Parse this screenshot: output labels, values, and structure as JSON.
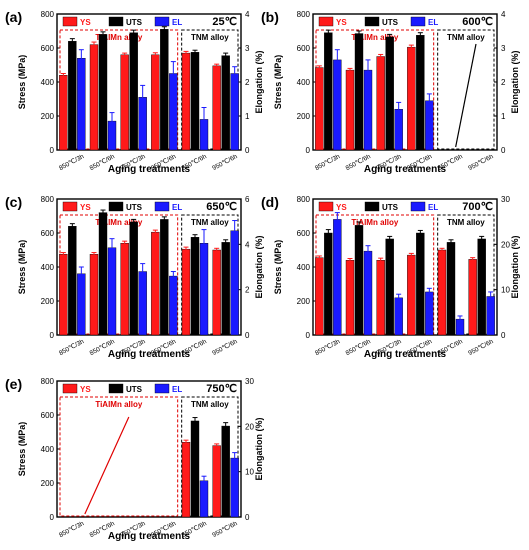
{
  "colors": {
    "YS": "#ff1a1a",
    "UTS": "#000000",
    "EL": "#1a1aff",
    "tiaMnBox": "#e00000",
    "tnmBox": "#000000"
  },
  "chart_data": [
    {
      "type": "bar",
      "panel": "(a)",
      "temperature": "25℃",
      "ylabel": "Stress (MPa)",
      "y2label": "Elongation (%)",
      "xlabel": "Aging treatments",
      "ylim": [
        0,
        800
      ],
      "yticks": [
        0,
        200,
        400,
        600,
        800
      ],
      "y2lim": [
        0,
        4
      ],
      "y2ticks": [
        0,
        1,
        2,
        3,
        4
      ],
      "legend": [
        "YS",
        "UTS",
        "EL"
      ],
      "group_labels": [
        "TiAlMn alloy",
        "TNM alloy"
      ],
      "categories": [
        "850℃/3h",
        "850℃/6h",
        "950℃/3h",
        "950℃/6h",
        "850℃/6h",
        "950℃/6h"
      ],
      "group_split": 4,
      "series": [
        {
          "name": "YS",
          "axis": "left",
          "values": [
            440,
            620,
            560,
            560,
            570,
            495
          ],
          "err": [
            10,
            15,
            10,
            12,
            10,
            10
          ]
        },
        {
          "name": "UTS",
          "axis": "left",
          "values": [
            640,
            680,
            690,
            710,
            575,
            555
          ],
          "err": [
            15,
            15,
            15,
            15,
            12,
            15
          ]
        },
        {
          "name": "EL",
          "axis": "right",
          "values": [
            2.7,
            0.85,
            1.55,
            2.25,
            0.9,
            2.25
          ],
          "err": [
            0.25,
            0.25,
            0.35,
            0.35,
            0.35,
            0.2
          ]
        }
      ]
    },
    {
      "type": "bar",
      "panel": "(b)",
      "temperature": "600℃",
      "ylabel": "Stress (MPa)",
      "y2label": "Elongation (%)",
      "xlabel": "Aging treatments",
      "ylim": [
        0,
        800
      ],
      "yticks": [
        0,
        200,
        400,
        600,
        800
      ],
      "y2lim": [
        0,
        4
      ],
      "y2ticks": [
        0,
        1,
        2,
        3,
        4
      ],
      "legend": [
        "YS",
        "UTS",
        "EL"
      ],
      "group_labels": [
        "TiAlMn alloy",
        "TNM alloy"
      ],
      "categories": [
        "850℃/3h",
        "850℃/6h",
        "950℃/3h",
        "950℃/6h",
        "850℃/6h",
        "950℃/6h"
      ],
      "group_split": 4,
      "strike_group": 1,
      "series": [
        {
          "name": "YS",
          "axis": "left",
          "values": [
            485,
            470,
            550,
            605,
            null,
            null
          ],
          "err": [
            10,
            10,
            12,
            12,
            null,
            null
          ]
        },
        {
          "name": "UTS",
          "axis": "left",
          "values": [
            690,
            685,
            665,
            675,
            null,
            null
          ],
          "err": [
            15,
            15,
            15,
            15,
            null,
            null
          ]
        },
        {
          "name": "EL",
          "axis": "right",
          "values": [
            2.65,
            2.35,
            1.2,
            1.45,
            null,
            null
          ],
          "err": [
            0.3,
            0.3,
            0.2,
            0.2,
            null,
            null
          ]
        }
      ]
    },
    {
      "type": "bar",
      "panel": "(c)",
      "temperature": "650℃",
      "ylabel": "Stress (MPa)",
      "y2label": "Elongation (%)",
      "xlabel": "Aging treatments",
      "ylim": [
        0,
        800
      ],
      "yticks": [
        0,
        200,
        400,
        600,
        800
      ],
      "y2lim": [
        0,
        6
      ],
      "y2ticks": [
        0,
        2,
        4,
        6
      ],
      "legend": [
        "YS",
        "UTS",
        "EL"
      ],
      "group_labels": [
        "TiAlMn alloy",
        "TNM alloy"
      ],
      "categories": [
        "850℃/3h",
        "850℃/6h",
        "950℃/3h",
        "950℃/6h",
        "850℃/6h",
        "950℃/6h"
      ],
      "group_split": 4,
      "series": [
        {
          "name": "YS",
          "axis": "left",
          "values": [
            475,
            475,
            540,
            605,
            505,
            500
          ],
          "err": [
            10,
            10,
            12,
            12,
            12,
            10
          ]
        },
        {
          "name": "UTS",
          "axis": "left",
          "values": [
            640,
            720,
            665,
            680,
            575,
            545
          ],
          "err": [
            15,
            15,
            15,
            15,
            15,
            15
          ]
        },
        {
          "name": "EL",
          "axis": "right",
          "values": [
            2.7,
            3.85,
            2.8,
            2.6,
            4.05,
            4.6
          ],
          "err": [
            0.3,
            0.4,
            0.35,
            0.2,
            0.6,
            0.45
          ]
        }
      ]
    },
    {
      "type": "bar",
      "panel": "(d)",
      "temperature": "700℃",
      "ylabel": "Stress (MPa)",
      "y2label": "Elongation (%)",
      "xlabel": "Aging treatments",
      "ylim": [
        0,
        800
      ],
      "yticks": [
        0,
        200,
        400,
        600,
        800
      ],
      "y2lim": [
        0,
        30
      ],
      "y2ticks": [
        0,
        10,
        20,
        30
      ],
      "legend": [
        "YS",
        "UTS",
        "EL"
      ],
      "group_labels": [
        "TiAlMn alloy",
        "TNM alloy"
      ],
      "categories": [
        "850℃/3h",
        "850℃/6h",
        "950℃/3h",
        "950℃/6h",
        "850℃/6h",
        "950℃/6h"
      ],
      "group_split": 4,
      "series": [
        {
          "name": "YS",
          "axis": "left",
          "values": [
            455,
            440,
            440,
            470,
            500,
            445
          ],
          "err": [
            10,
            10,
            12,
            10,
            10,
            10
          ]
        },
        {
          "name": "UTS",
          "axis": "left",
          "values": [
            600,
            645,
            565,
            600,
            545,
            565
          ],
          "err": [
            20,
            20,
            15,
            15,
            15,
            15
          ]
        },
        {
          "name": "EL",
          "axis": "right",
          "values": [
            25.5,
            18.5,
            8.2,
            9.5,
            3.5,
            8.5
          ],
          "err": [
            1.5,
            1.2,
            0.8,
            0.8,
            0.7,
            1.0
          ]
        }
      ]
    },
    {
      "type": "bar",
      "panel": "(e)",
      "temperature": "750℃",
      "ylabel": "Stress (MPa)",
      "y2label": "Elongation (%)",
      "xlabel": "Aging treatments",
      "ylim": [
        0,
        800
      ],
      "yticks": [
        0,
        200,
        400,
        600,
        800
      ],
      "y2lim": [
        0,
        30
      ],
      "y2ticks": [
        0,
        10,
        20,
        30
      ],
      "legend": [
        "YS",
        "UTS",
        "EL"
      ],
      "group_labels": [
        "TiAlMn alloy",
        "TNM alloy"
      ],
      "categories": [
        "850℃/3h",
        "850℃/6h",
        "950℃/3h",
        "950℃/6h",
        "850℃/6h",
        "950℃/6h"
      ],
      "group_split": 4,
      "strike_group": 0,
      "series": [
        {
          "name": "YS",
          "axis": "left",
          "values": [
            null,
            null,
            null,
            null,
            440,
            420
          ],
          "err": [
            null,
            null,
            null,
            null,
            12,
            10
          ]
        },
        {
          "name": "UTS",
          "axis": "left",
          "values": [
            null,
            null,
            null,
            null,
            565,
            535
          ],
          "err": [
            null,
            null,
            null,
            null,
            20,
            20
          ]
        },
        {
          "name": "EL",
          "axis": "right",
          "values": [
            null,
            null,
            null,
            null,
            8,
            13
          ],
          "err": [
            null,
            null,
            null,
            null,
            1.0,
            1.2
          ]
        }
      ]
    }
  ]
}
